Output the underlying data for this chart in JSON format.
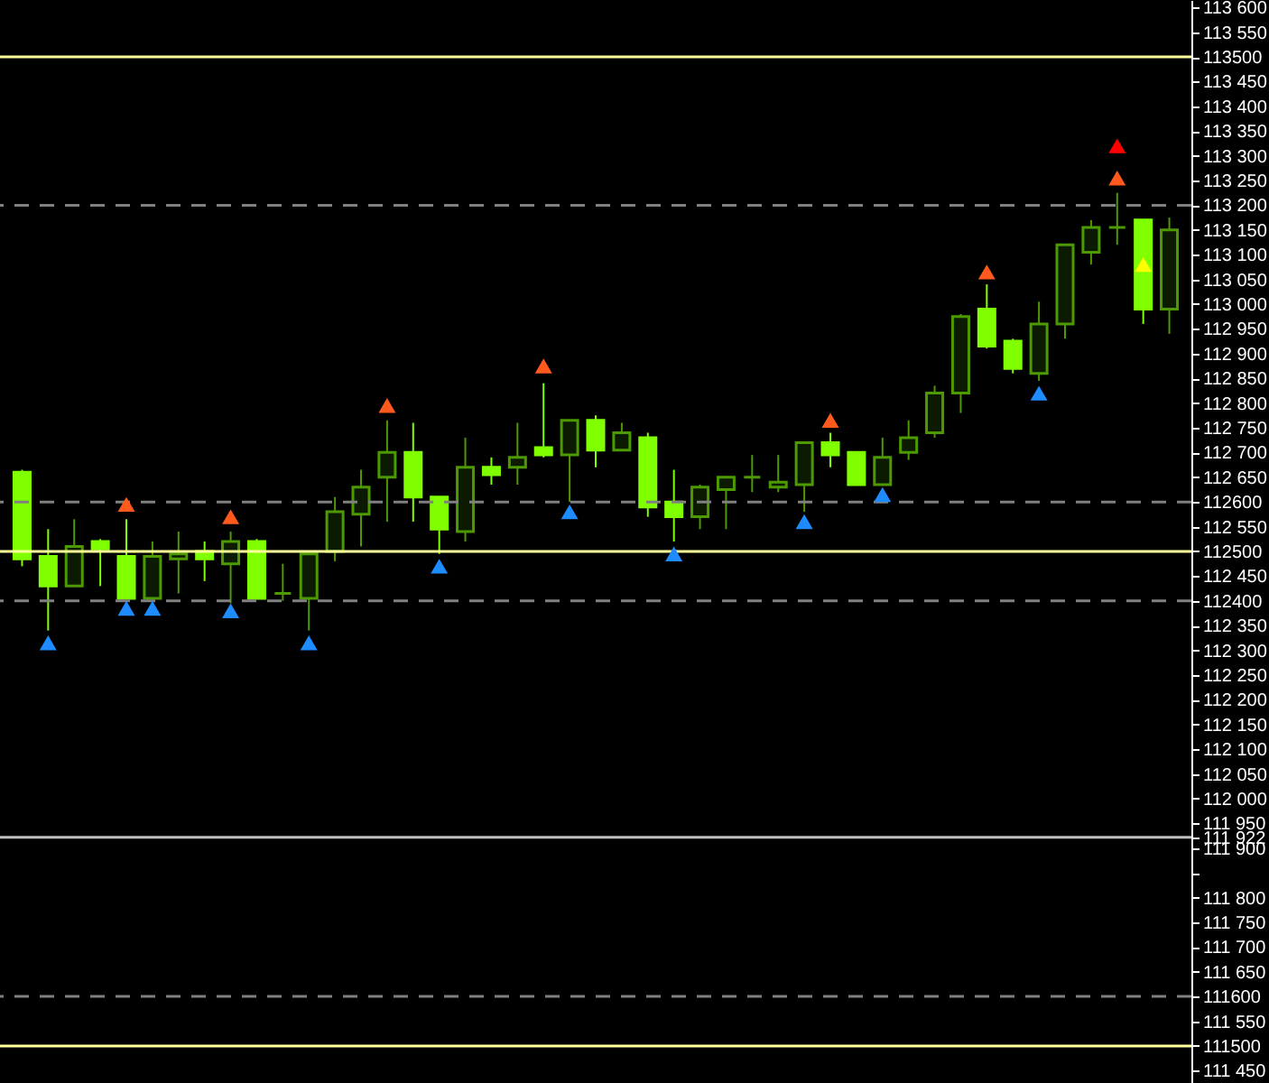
{
  "chart_data": {
    "type": "candlestick",
    "categories": [
      null,
      null,
      null,
      null,
      null,
      null,
      null,
      null,
      null,
      null,
      null,
      null,
      null,
      null,
      null,
      null,
      null,
      null,
      null,
      null,
      null,
      null,
      null,
      null,
      null,
      null,
      null,
      null,
      null,
      null,
      null,
      null,
      null,
      null,
      null,
      null,
      null,
      null,
      null,
      null,
      null,
      null,
      null,
      null,
      null
    ],
    "ohlc": [
      [
        112660,
        112665,
        112470,
        112485
      ],
      [
        112490,
        112545,
        112340,
        112430
      ],
      [
        112430,
        112565,
        112430,
        112510
      ],
      [
        112520,
        112525,
        112430,
        112505
      ],
      [
        112490,
        112565,
        112405,
        112405
      ],
      [
        112405,
        112520,
        112405,
        112490
      ],
      [
        112485,
        112540,
        112415,
        112495
      ],
      [
        112500,
        112520,
        112440,
        112485
      ],
      [
        112475,
        112540,
        112395,
        112520
      ],
      [
        112520,
        112525,
        112405,
        112405
      ],
      [
        112415,
        112475,
        112400,
        112415
      ],
      [
        112405,
        112495,
        112340,
        112495
      ],
      [
        112500,
        112610,
        112480,
        112580
      ],
      [
        112575,
        112665,
        112510,
        112630
      ],
      [
        112650,
        112765,
        112560,
        112700
      ],
      [
        112700,
        112760,
        112560,
        112610
      ],
      [
        112610,
        112610,
        112495,
        112545
      ],
      [
        112540,
        112730,
        112520,
        112670
      ],
      [
        112670,
        112690,
        112635,
        112655
      ],
      [
        112670,
        112760,
        112635,
        112690
      ],
      [
        112710,
        112840,
        112690,
        112695
      ],
      [
        112695,
        112765,
        112600,
        112765
      ],
      [
        112765,
        112775,
        112670,
        112705
      ],
      [
        112705,
        112760,
        112705,
        112740
      ],
      [
        112730,
        112740,
        112570,
        112590
      ],
      [
        112600,
        112665,
        112520,
        112570
      ],
      [
        112570,
        112635,
        112545,
        112630
      ],
      [
        112625,
        112650,
        112545,
        112650
      ],
      [
        112650,
        112695,
        112620,
        112650
      ],
      [
        112630,
        112695,
        112620,
        112640
      ],
      [
        112635,
        112720,
        112580,
        112720
      ],
      [
        112720,
        112740,
        112670,
        112695
      ],
      [
        112700,
        112700,
        112635,
        112635
      ],
      [
        112635,
        112730,
        112635,
        112690
      ],
      [
        112700,
        112765,
        112685,
        112730
      ],
      [
        112740,
        112835,
        112730,
        112820
      ],
      [
        112820,
        112980,
        112780,
        112975
      ],
      [
        112990,
        113040,
        112910,
        112915
      ],
      [
        112925,
        112930,
        112860,
        112870
      ],
      [
        112860,
        113005,
        112845,
        112960
      ],
      [
        112960,
        113120,
        112930,
        113120
      ],
      [
        113105,
        113170,
        113080,
        113155
      ],
      [
        113155,
        113225,
        113120,
        113155
      ],
      [
        113170,
        113170,
        112960,
        112990
      ],
      [
        112990,
        113175,
        112940,
        113150
      ]
    ],
    "colors": [
      "#80ff00",
      "#80ff00",
      "#4c9a00",
      "#80ff00",
      "#80ff00",
      "#4c9a00",
      "#4c9a00",
      "#80ff00",
      "#4c9a00",
      "#80ff00",
      "#4c9a00",
      "#4c9a00",
      "#4c9a00",
      "#4c9a00",
      "#4c9a00",
      "#80ff00",
      "#80ff00",
      "#4c9a00",
      "#80ff00",
      "#4c9a00",
      "#80ff00",
      "#4c9a00",
      "#80ff00",
      "#4c9a00",
      "#80ff00",
      "#80ff00",
      "#4c9a00",
      "#4c9a00",
      "#4c9a00",
      "#4c9a00",
      "#4c9a00",
      "#80ff00",
      "#80ff00",
      "#4c9a00",
      "#4c9a00",
      "#4c9a00",
      "#4c9a00",
      "#80ff00",
      "#80ff00",
      "#4c9a00",
      "#4c9a00",
      "#4c9a00",
      "#4c9a00",
      "#80ff00",
      "#4c9a00"
    ],
    "series": [
      {
        "type": "scatter",
        "marker": "triangle",
        "color": "#ff5a1e",
        "values": [
          null,
          null,
          null,
          null,
          112595,
          null,
          null,
          null,
          112570,
          null,
          null,
          null,
          null,
          null,
          112795,
          null,
          null,
          null,
          null,
          null,
          112875,
          null,
          null,
          null,
          null,
          null,
          null,
          null,
          null,
          null,
          null,
          112765,
          null,
          null,
          null,
          null,
          null,
          113065,
          null,
          null,
          null,
          null,
          113255,
          null,
          null
        ]
      },
      {
        "type": "scatter",
        "marker": "triangle",
        "color": "#1e8cff",
        "values": [
          null,
          112315,
          null,
          null,
          112385,
          112385,
          null,
          null,
          112380,
          null,
          null,
          112315,
          null,
          null,
          null,
          null,
          112470,
          null,
          null,
          null,
          null,
          112580,
          null,
          null,
          null,
          112495,
          null,
          null,
          null,
          null,
          112560,
          null,
          null,
          112615,
          null,
          null,
          null,
          null,
          null,
          112820,
          null,
          null,
          null,
          null,
          null
        ]
      },
      {
        "type": "scatter",
        "marker": "triangle",
        "color": "#ff0000",
        "values": [
          null,
          null,
          null,
          null,
          null,
          null,
          null,
          null,
          null,
          null,
          null,
          null,
          null,
          null,
          null,
          null,
          null,
          null,
          null,
          null,
          null,
          null,
          null,
          null,
          null,
          null,
          null,
          null,
          null,
          null,
          null,
          null,
          null,
          null,
          null,
          null,
          null,
          null,
          null,
          null,
          null,
          null,
          113320,
          null,
          null
        ]
      },
      {
        "type": "scatter",
        "marker": "triangle",
        "color": "#ffff00",
        "values": [
          null,
          null,
          null,
          null,
          null,
          null,
          null,
          null,
          null,
          null,
          null,
          null,
          null,
          null,
          null,
          null,
          null,
          null,
          null,
          null,
          null,
          null,
          null,
          null,
          null,
          null,
          null,
          null,
          null,
          null,
          null,
          null,
          null,
          null,
          null,
          null,
          null,
          null,
          null,
          null,
          null,
          null,
          null,
          113080,
          null
        ]
      }
    ],
    "ylim": [
      111425,
      113615
    ],
    "yticks": [
      {
        "value": 113600,
        "label": "113 600"
      },
      {
        "value": 113550,
        "label": "113 550"
      },
      {
        "value": 113500,
        "label": "113500"
      },
      {
        "value": 113450,
        "label": "113 450"
      },
      {
        "value": 113400,
        "label": "113 400"
      },
      {
        "value": 113350,
        "label": "113 350"
      },
      {
        "value": 113300,
        "label": "113 300"
      },
      {
        "value": 113250,
        "label": "113 250"
      },
      {
        "value": 113200,
        "label": "113 200"
      },
      {
        "value": 113150,
        "label": "113 150"
      },
      {
        "value": 113100,
        "label": "113 100"
      },
      {
        "value": 113050,
        "label": "113 050"
      },
      {
        "value": 113000,
        "label": "113 000"
      },
      {
        "value": 112950,
        "label": "112 950"
      },
      {
        "value": 112900,
        "label": "112 900"
      },
      {
        "value": 112850,
        "label": "112 850"
      },
      {
        "value": 112800,
        "label": "112 800"
      },
      {
        "value": 112750,
        "label": "112 750"
      },
      {
        "value": 112700,
        "label": "112 700"
      },
      {
        "value": 112650,
        "label": "112 650"
      },
      {
        "value": 112600,
        "label": "112600"
      },
      {
        "value": 112550,
        "label": "112 550"
      },
      {
        "value": 112500,
        "label": "112500"
      },
      {
        "value": 112450,
        "label": "112 450"
      },
      {
        "value": 112400,
        "label": "112400"
      },
      {
        "value": 112350,
        "label": "112 350"
      },
      {
        "value": 112300,
        "label": "112 300"
      },
      {
        "value": 112250,
        "label": "112 250"
      },
      {
        "value": 112200,
        "label": "112 200"
      },
      {
        "value": 112150,
        "label": "112 150"
      },
      {
        "value": 112100,
        "label": "112 100"
      },
      {
        "value": 112050,
        "label": "112 050"
      },
      {
        "value": 112000,
        "label": "112 000"
      },
      {
        "value": 111950,
        "label": "111 950"
      },
      {
        "value": 111922,
        "label": "111 922"
      },
      {
        "value": 111900,
        "label": "111 900"
      },
      {
        "value": 111850,
        "label": null
      },
      {
        "value": 111800,
        "label": "111 800"
      },
      {
        "value": 111750,
        "label": "111 750"
      },
      {
        "value": 111700,
        "label": "111 700"
      },
      {
        "value": 111650,
        "label": "111 650"
      },
      {
        "value": 111600,
        "label": "111600"
      },
      {
        "value": 111550,
        "label": "111 550"
      },
      {
        "value": 111500,
        "label": "111500"
      },
      {
        "value": 111450,
        "label": "111 450"
      }
    ],
    "tick_labels": "y",
    "grid": false,
    "ref_lines": [
      {
        "axis": "y",
        "value": 113500,
        "color": "#ffff99",
        "line_style": "solid"
      },
      {
        "axis": "y",
        "value": 112500,
        "color": "#ffff99",
        "line_style": "solid"
      },
      {
        "axis": "y",
        "value": 111500,
        "color": "#ffff99",
        "line_style": "solid"
      },
      {
        "axis": "y",
        "value": 113200,
        "color": "#808080",
        "line_style": "dashed"
      },
      {
        "axis": "y",
        "value": 112600,
        "color": "#808080",
        "line_style": "dashed"
      },
      {
        "axis": "y",
        "value": 112400,
        "color": "#808080",
        "line_style": "dashed"
      },
      {
        "axis": "y",
        "value": 111600,
        "color": "#808080",
        "line_style": "dashed"
      },
      {
        "axis": "y",
        "value": 111922,
        "color": "#c0c0c0",
        "line_style": "solid"
      }
    ]
  }
}
